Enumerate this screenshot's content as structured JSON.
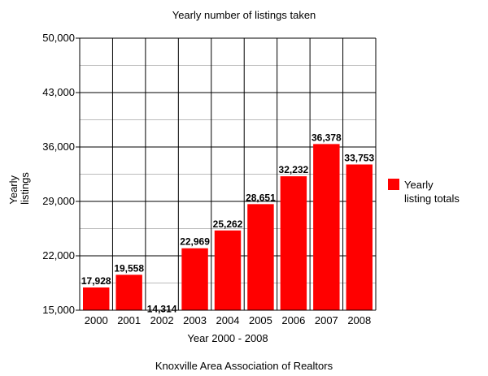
{
  "chart_data": {
    "type": "bar",
    "title": "Yearly number of listings taken",
    "xlabel": "Year 2000 - 2008",
    "ylabel_lines": [
      "Yearly",
      "listings"
    ],
    "footer": "Knoxville Area Association of Realtors",
    "categories": [
      "2000",
      "2001",
      "2002",
      "2003",
      "2004",
      "2005",
      "2006",
      "2007",
      "2008"
    ],
    "series": [
      {
        "name_lines": [
          "Yearly",
          "listing totals"
        ],
        "color": "#ff0000",
        "values": [
          17928,
          19558,
          14314,
          22969,
          25262,
          28651,
          32232,
          36378,
          33753
        ],
        "labels": [
          "17,928",
          "19,558",
          "14,314",
          "22,969",
          "25,262",
          "28,651",
          "32,232",
          "36,378",
          "33,753"
        ]
      }
    ],
    "ylim": [
      15000,
      50000
    ],
    "yticks": [
      15000,
      22000,
      29000,
      36000,
      43000,
      50000
    ],
    "ytick_labels": [
      "15,000",
      "22,000",
      "29,000",
      "36,000",
      "43,000",
      "50,000"
    ],
    "grid": true,
    "legend_position": "right"
  }
}
